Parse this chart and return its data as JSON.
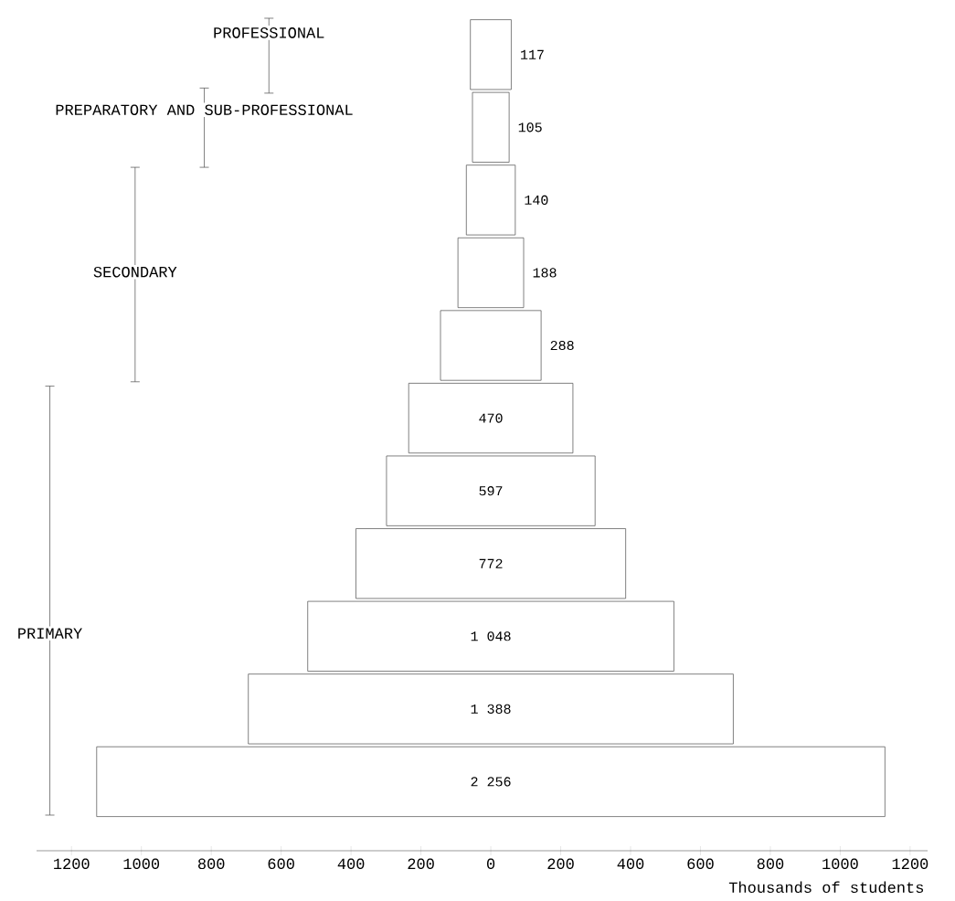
{
  "chart_data": {
    "type": "bar",
    "orientation": "horizontal",
    "xlabel": "Thousands of students",
    "categories": [
      null,
      null,
      null,
      null,
      null,
      null,
      null,
      null,
      null,
      null,
      null
    ],
    "values": [
      117,
      105,
      140,
      188,
      288,
      470,
      597,
      772,
      1048,
      1388,
      2256
    ],
    "base": [
      -58.5,
      -52.5,
      -70,
      -94,
      -144,
      -235,
      -298.5,
      -386,
      -524,
      -694,
      -1128
    ],
    "value_labels": [
      "117",
      "105",
      "140",
      "188",
      "288",
      "470",
      "597",
      "772",
      "1 048",
      "1 388",
      "2 256"
    ],
    "color": "#ffffff",
    "xlim": [
      -1300,
      1250
    ],
    "xticks": [
      {
        "value": -1200,
        "label": "1200"
      },
      {
        "value": -1000,
        "label": "1000"
      },
      {
        "value": -800,
        "label": "800"
      },
      {
        "value": -600,
        "label": "600"
      },
      {
        "value": -400,
        "label": "400"
      },
      {
        "value": -200,
        "label": "200"
      },
      0,
      200,
      400,
      600,
      800,
      1000,
      1200
    ],
    "tick_labels": "x",
    "annotations": [
      "PROFESSIONAL",
      "PREPARATORY AND SUB-PROFESSIONAL",
      "SECONDARY",
      "PRIMARY"
    ]
  }
}
